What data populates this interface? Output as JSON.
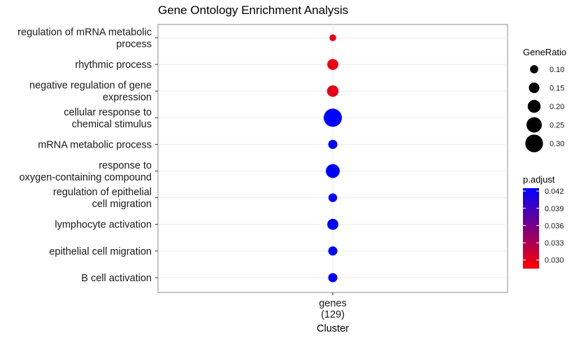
{
  "chart_data": {
    "type": "scatter",
    "title": "Gene Ontology Enrichment Analysis",
    "xlabel": "Cluster",
    "ylabel": "",
    "categories_x": [
      [
        "genes",
        "(129)"
      ]
    ],
    "grid": true,
    "legend_placement": "right",
    "terms": [
      {
        "label": [
          "regulation of mRNA metabolic",
          "process"
        ],
        "gene_ratio": 0.07,
        "p_adjust": 0.0295
      },
      {
        "label": [
          "rhythmic process"
        ],
        "gene_ratio": 0.16,
        "p_adjust": 0.0295
      },
      {
        "label": [
          "negative regulation of gene",
          "expression"
        ],
        "gene_ratio": 0.17,
        "p_adjust": 0.0298
      },
      {
        "label": [
          "cellular response to",
          "chemical stimulus"
        ],
        "gene_ratio": 0.31,
        "p_adjust": 0.0425
      },
      {
        "label": [
          "mRNA metabolic process"
        ],
        "gene_ratio": 0.12,
        "p_adjust": 0.0425
      },
      {
        "label": [
          "response to",
          "oxygen-containing compound"
        ],
        "gene_ratio": 0.22,
        "p_adjust": 0.0425
      },
      {
        "label": [
          "regulation of epithelial",
          "cell migration"
        ],
        "gene_ratio": 0.11,
        "p_adjust": 0.0425
      },
      {
        "label": [
          "lymphocyte activation"
        ],
        "gene_ratio": 0.16,
        "p_adjust": 0.0425
      },
      {
        "label": [
          "epithelial cell migration"
        ],
        "gene_ratio": 0.12,
        "p_adjust": 0.0425
      },
      {
        "label": [
          "B cell activation"
        ],
        "gene_ratio": 0.12,
        "p_adjust": 0.0425
      }
    ],
    "size_legend": {
      "title": "GeneRatio",
      "breaks": [
        0.1,
        0.15,
        0.2,
        0.25,
        0.3
      ],
      "labels": [
        "0.10",
        "0.15",
        "0.20",
        "0.25",
        "0.30"
      ]
    },
    "color_legend": {
      "title": "p.adjust",
      "range": [
        0.0285,
        0.0425
      ],
      "breaks": [
        0.03,
        0.033,
        0.036,
        0.039,
        0.042
      ],
      "labels": [
        "0.030",
        "0.033",
        "0.036",
        "0.039",
        "0.042"
      ],
      "low_color": "#ff0000",
      "high_color": "#0000ff"
    }
  }
}
